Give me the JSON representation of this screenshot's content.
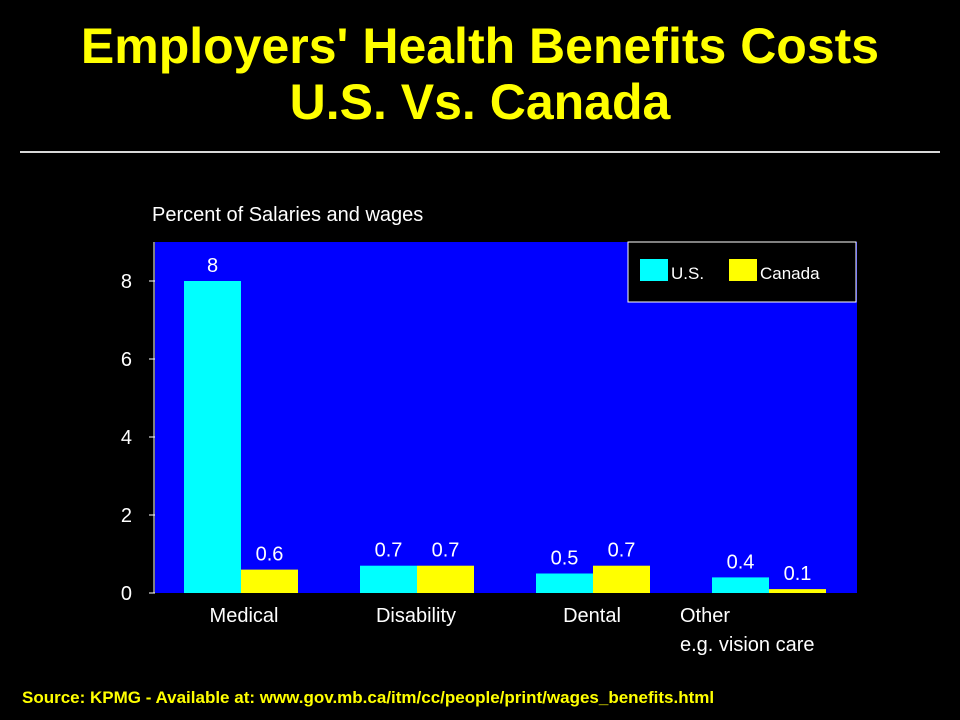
{
  "title_line1": "Employers' Health Benefits Costs",
  "title_line2": "U.S. Vs. Canada",
  "source": "Source: KPMG - Available at: www.gov.mb.ca/itm/cc/people/print/wages_benefits.html",
  "colors": {
    "background": "#000000",
    "plot_area": "#0000ff",
    "us": "#00ffff",
    "canada": "#ffff00",
    "title": "#ffff00"
  },
  "chart_data": {
    "type": "bar",
    "title": "",
    "ylabel": "Percent of Salaries and wages",
    "xlabel": "",
    "categories": [
      [
        "Medical"
      ],
      [
        "Disability"
      ],
      [
        "Dental"
      ],
      [
        "Other",
        "e.g. vision care"
      ]
    ],
    "series": [
      {
        "name": "U.S.",
        "color": "#00ffff",
        "values": [
          8,
          0.7,
          0.5,
          0.4
        ],
        "labels": [
          "8",
          "0.7",
          "0.5",
          "0.4"
        ]
      },
      {
        "name": "Canada",
        "color": "#ffff00",
        "values": [
          0.6,
          0.7,
          0.7,
          0.1
        ],
        "labels": [
          "0.6",
          "0.7",
          "0.7",
          "0.1"
        ]
      }
    ],
    "ylim": [
      0,
      9
    ],
    "yticks": [
      0,
      2,
      4,
      6,
      8
    ],
    "legend": "top-right",
    "grid": false
  }
}
